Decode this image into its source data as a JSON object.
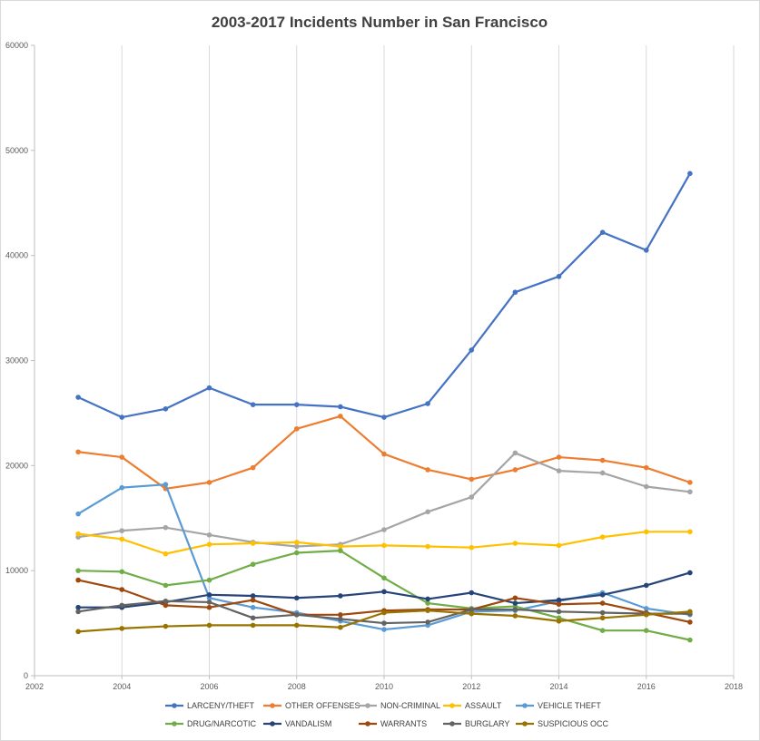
{
  "chart_data": {
    "type": "line",
    "title": "2003-2017 Incidents Number in San Francisco",
    "xlabel": "",
    "ylabel": "",
    "xlim": [
      2002,
      2018
    ],
    "ylim": [
      0,
      60000
    ],
    "x_ticks": [
      "2002",
      "2004",
      "2006",
      "2008",
      "2010",
      "2012",
      "2014",
      "2016",
      "2018"
    ],
    "y_ticks": [
      "0",
      "10000",
      "20000",
      "30000",
      "40000",
      "50000",
      "60000"
    ],
    "grid": "vertical",
    "legend_position": "bottom",
    "x": [
      2003,
      2004,
      2005,
      2006,
      2007,
      2008,
      2009,
      2010,
      2011,
      2012,
      2013,
      2014,
      2015,
      2016,
      2017
    ],
    "series": [
      {
        "name": "LARCENY/THEFT",
        "color": "#4472C4",
        "values": [
          26500,
          24600,
          25400,
          27400,
          25800,
          25800,
          25600,
          24600,
          25900,
          31000,
          36500,
          38000,
          42200,
          40500,
          47800
        ]
      },
      {
        "name": "OTHER OFFENSES",
        "color": "#ED7D31",
        "values": [
          21300,
          20800,
          17800,
          18400,
          19800,
          23500,
          24700,
          21100,
          19600,
          18700,
          19600,
          20800,
          20500,
          19800,
          18400
        ]
      },
      {
        "name": "NON-CRIMINAL",
        "color": "#A5A5A5",
        "values": [
          13200,
          13800,
          14100,
          13400,
          12700,
          12300,
          12500,
          13900,
          15600,
          17000,
          21200,
          19500,
          19300,
          18000,
          17500
        ]
      },
      {
        "name": "ASSAULT",
        "color": "#FFC000",
        "values": [
          13500,
          13000,
          11600,
          12500,
          12600,
          12700,
          12300,
          12400,
          12300,
          12200,
          12600,
          12400,
          13200,
          13700,
          13700
        ]
      },
      {
        "name": "VEHICLE THEFT",
        "color": "#5B9BD5",
        "values": [
          15400,
          17900,
          18200,
          7400,
          6500,
          6000,
          5200,
          4400,
          4800,
          6100,
          6200,
          7100,
          7900,
          6400,
          5800
        ]
      },
      {
        "name": "DRUG/NARCOTIC",
        "color": "#70AD47",
        "values": [
          10000,
          9900,
          8600,
          9100,
          10600,
          11700,
          11900,
          9300,
          6900,
          6400,
          6600,
          5500,
          4300,
          4300,
          3400
        ]
      },
      {
        "name": "VANDALISM",
        "color": "#264478",
        "values": [
          6500,
          6500,
          7000,
          7700,
          7600,
          7400,
          7600,
          8000,
          7300,
          7900,
          6900,
          7200,
          7700,
          8600,
          9800
        ]
      },
      {
        "name": "WARRANTS",
        "color": "#9E480E",
        "values": [
          9100,
          8200,
          6700,
          6500,
          7200,
          5800,
          5800,
          6200,
          6300,
          6300,
          7400,
          6800,
          6900,
          6000,
          5100
        ]
      },
      {
        "name": "BURGLARY",
        "color": "#636363",
        "values": [
          6100,
          6700,
          7100,
          7000,
          5500,
          5800,
          5400,
          5000,
          5100,
          6300,
          6300,
          6100,
          6000,
          5900,
          5900
        ]
      },
      {
        "name": "SUSPICIOUS OCC",
        "color": "#997300",
        "values": [
          4200,
          4500,
          4700,
          4800,
          4800,
          4800,
          4600,
          6000,
          6200,
          5900,
          5700,
          5200,
          5500,
          5800,
          6100
        ]
      }
    ]
  }
}
